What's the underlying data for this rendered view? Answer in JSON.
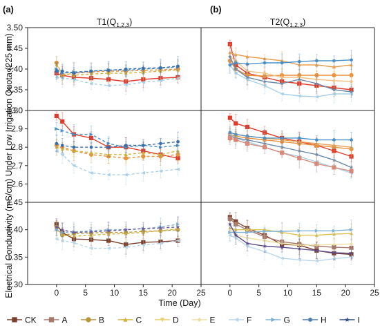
{
  "chart_data": {
    "type": "line",
    "panel_letters": [
      "(a)",
      "(b)"
    ],
    "column_titles": [
      "T1(Q",
      "T2(Q"
    ],
    "column_title_sub": "1,2,3",
    "column_title_close": ")",
    "xlabel": "Time (Day)",
    "ylabel": "Electrical Conductivity (mS/cm) Under Low Irrigation Quota (225 mm)",
    "xlim": [
      -5,
      25
    ],
    "xticks": [
      "0",
      "5",
      "10",
      "15",
      "20",
      "25"
    ],
    "x": [
      0,
      1,
      3,
      6,
      9,
      12,
      15,
      18,
      21
    ],
    "rows": [
      {
        "ylim": [
          3.3,
          3.5
        ],
        "yticks": [
          "3.30",
          "3.35",
          "3.40",
          "3.45",
          "3.50"
        ]
      },
      {
        "ylim": [
          2.5,
          3.0
        ],
        "yticks": [
          "2.6",
          "2.7",
          "2.8",
          "2.9",
          "3.0"
        ]
      },
      {
        "ylim": [
          1.3,
          1.45
        ],
        "yticks": [
          "1.30",
          "1.35",
          "1.40",
          "1.45"
        ]
      }
    ],
    "series_style": [
      {
        "name": "CK",
        "color": "#7a3e2c",
        "marker": "square"
      },
      {
        "name": "A",
        "color": "#a7786a",
        "marker": "square"
      },
      {
        "name": "B",
        "color": "#b8963b",
        "marker": "circle"
      },
      {
        "name": "C",
        "color": "#d4b23a",
        "marker": "triangle"
      },
      {
        "name": "D",
        "color": "#e8cf6f",
        "marker": "triangle-down"
      },
      {
        "name": "E",
        "color": "#ecdfa0",
        "marker": "diamond"
      },
      {
        "name": "F",
        "color": "#b9d6ea",
        "marker": "left"
      },
      {
        "name": "G",
        "color": "#7fb2d6",
        "marker": "right"
      },
      {
        "name": "H",
        "color": "#4f7fb0",
        "marker": "hexagon"
      },
      {
        "name": "I",
        "color": "#2f4f86",
        "marker": "star"
      }
    ],
    "panels": [
      {
        "row": 0,
        "col": 0,
        "series": [
          {
            "color": "#e03a2a",
            "marker": "square",
            "dash": false,
            "values": [
              3.39,
              3.385,
              3.38,
              3.378,
              3.375,
              3.37,
              3.375,
              3.378,
              3.38
            ]
          },
          {
            "color": "#e8903a",
            "marker": "circle",
            "dash": true,
            "values": [
              3.415,
              3.385,
              3.39,
              3.393,
              3.395,
              3.395,
              3.397,
              3.398,
              3.4
            ]
          },
          {
            "color": "#d4b23a",
            "marker": "triangle",
            "dash": true,
            "values": [
              3.41,
              3.39,
              3.385,
              3.388,
              3.39,
              3.39,
              3.392,
              3.395,
              3.398
            ]
          },
          {
            "color": "#a7d0e8",
            "marker": "left",
            "dash": true,
            "values": [
              3.38,
              3.378,
              3.375,
              3.365,
              3.36,
              3.362,
              3.368,
              3.372,
              3.378
            ]
          },
          {
            "color": "#4a90c8",
            "marker": "right",
            "dash": true,
            "values": [
              3.4,
              3.39,
              3.393,
              3.395,
              3.398,
              3.397,
              3.4,
              3.402,
              3.405
            ]
          },
          {
            "color": "#3a6fa8",
            "marker": "hexagon",
            "dash": true,
            "values": [
              3.395,
              3.395,
              3.39,
              3.395,
              3.397,
              3.4,
              3.402,
              3.403,
              3.407
            ]
          }
        ]
      },
      {
        "row": 0,
        "col": 1,
        "series": [
          {
            "color": "#e03a2a",
            "marker": "square",
            "dash": false,
            "values": [
              3.46,
              3.41,
              3.39,
              3.38,
              3.37,
              3.365,
              3.36,
              3.355,
              3.35
            ]
          },
          {
            "color": "#e8903a",
            "marker": "circle",
            "dash": false,
            "values": [
              3.42,
              3.4,
              3.385,
              3.383,
              3.385,
              3.385,
              3.385,
              3.385,
              3.385
            ]
          },
          {
            "color": "#e8a050",
            "marker": "triangle",
            "dash": false,
            "values": [
              3.44,
              3.435,
              3.43,
              3.425,
              3.42,
              3.41,
              3.41,
              3.405,
              3.41
            ]
          },
          {
            "color": "#f0c080",
            "marker": "diamond",
            "dash": false,
            "values": [
              3.43,
              3.42,
              3.395,
              3.39,
              3.38,
              3.38,
              3.375,
              3.372,
              3.37
            ]
          },
          {
            "color": "#a7d0e8",
            "marker": "left",
            "dash": false,
            "values": [
              3.41,
              3.39,
              3.375,
              3.36,
              3.34,
              3.335,
              3.333,
              3.34,
              3.34
            ]
          },
          {
            "color": "#4a90c8",
            "marker": "hexagon",
            "dash": false,
            "values": [
              3.41,
              3.415,
              3.412,
              3.415,
              3.415,
              3.418,
              3.42,
              3.42,
              3.422
            ]
          },
          {
            "color": "#6a8aa8",
            "marker": "star",
            "dash": false,
            "values": [
              3.43,
              3.4,
              3.38,
              3.37,
              3.365,
              3.375,
              3.365,
              3.35,
              3.345
            ]
          }
        ]
      },
      {
        "row": 1,
        "col": 0,
        "series": [
          {
            "color": "#e03a2a",
            "marker": "square",
            "dash": false,
            "values": [
              2.97,
              2.94,
              2.87,
              2.85,
              2.8,
              2.8,
              2.78,
              2.76,
              2.74
            ]
          },
          {
            "color": "#e8903a",
            "marker": "circle",
            "dash": true,
            "values": [
              2.81,
              2.8,
              2.78,
              2.76,
              2.75,
              2.74,
              2.75,
              2.75,
              2.76
            ]
          },
          {
            "color": "#d4b23a",
            "marker": "triangle",
            "dash": true,
            "values": [
              2.8,
              2.79,
              2.78,
              2.77,
              2.76,
              2.76,
              2.77,
              2.76,
              2.78
            ]
          },
          {
            "color": "#a7d0e8",
            "marker": "left",
            "dash": true,
            "values": [
              2.78,
              2.76,
              2.7,
              2.66,
              2.65,
              2.65,
              2.66,
              2.67,
              2.68
            ]
          },
          {
            "color": "#4a90c8",
            "marker": "right",
            "dash": true,
            "values": [
              2.9,
              2.89,
              2.87,
              2.87,
              2.82,
              2.8,
              2.81,
              2.8,
              2.81
            ]
          },
          {
            "color": "#3a6fa8",
            "marker": "hexagon",
            "dash": true,
            "values": [
              2.82,
              2.81,
              2.8,
              2.8,
              2.8,
              2.81,
              2.81,
              2.82,
              2.83
            ]
          }
        ]
      },
      {
        "row": 1,
        "col": 1,
        "series": [
          {
            "color": "#e03a2a",
            "marker": "square",
            "dash": false,
            "values": [
              2.96,
              2.93,
              2.91,
              2.88,
              2.85,
              2.83,
              2.81,
              2.78,
              2.75
            ]
          },
          {
            "color": "#e8903a",
            "marker": "circle",
            "dash": false,
            "values": [
              2.87,
              2.86,
              2.85,
              2.84,
              2.83,
              2.82,
              2.81,
              2.8,
              2.79
            ]
          },
          {
            "color": "#e8a050",
            "marker": "triangle",
            "dash": false,
            "values": [
              2.88,
              2.87,
              2.86,
              2.85,
              2.84,
              2.83,
              2.82,
              2.81,
              2.8
            ]
          },
          {
            "color": "#a7d0e8",
            "marker": "left",
            "dash": false,
            "values": [
              2.87,
              2.85,
              2.83,
              2.8,
              2.77,
              2.75,
              2.72,
              2.69,
              2.66
            ]
          },
          {
            "color": "#4a90c8",
            "marker": "hexagon",
            "dash": false,
            "values": [
              2.88,
              2.87,
              2.86,
              2.85,
              2.85,
              2.85,
              2.84,
              2.84,
              2.84
            ]
          },
          {
            "color": "#6a8aa8",
            "marker": "star",
            "dash": false,
            "values": [
              2.86,
              2.85,
              2.84,
              2.82,
              2.8,
              2.78,
              2.76,
              2.73,
              2.69
            ]
          },
          {
            "color": "#d88a7a",
            "marker": "square",
            "dash": false,
            "values": [
              2.85,
              2.84,
              2.82,
              2.8,
              2.77,
              2.74,
              2.71,
              2.69,
              2.67
            ]
          }
        ]
      },
      {
        "row": 2,
        "col": 0,
        "series": [
          {
            "color": "#7a3e2c",
            "marker": "square",
            "dash": false,
            "values": [
              1.41,
              1.395,
              1.383,
              1.382,
              1.38,
              1.373,
              1.377,
              1.378,
              1.38
            ]
          },
          {
            "color": "#b8963b",
            "marker": "circle",
            "dash": true,
            "values": [
              1.405,
              1.39,
              1.393,
              1.394,
              1.395,
              1.395,
              1.397,
              1.398,
              1.4
            ]
          },
          {
            "color": "#d4b23a",
            "marker": "triangle",
            "dash": true,
            "values": [
              1.4,
              1.39,
              1.388,
              1.39,
              1.392,
              1.393,
              1.395,
              1.398,
              1.402
            ]
          },
          {
            "color": "#b9d6ea",
            "marker": "left",
            "dash": true,
            "values": [
              1.383,
              1.38,
              1.376,
              1.366,
              1.366,
              1.368,
              1.372,
              1.375,
              1.38
            ]
          },
          {
            "color": "#7fb2d6",
            "marker": "right",
            "dash": true,
            "values": [
              1.4,
              1.395,
              1.396,
              1.398,
              1.4,
              1.4,
              1.402,
              1.405,
              1.41
            ]
          },
          {
            "color": "#6a5a9a",
            "marker": "star",
            "dash": true,
            "values": [
              1.405,
              1.4,
              1.395,
              1.396,
              1.398,
              1.4,
              1.402,
              1.403,
              1.405
            ]
          }
        ]
      },
      {
        "row": 2,
        "col": 1,
        "series": [
          {
            "color": "#7a3e2c",
            "marker": "square",
            "dash": false,
            "values": [
              1.423,
              1.415,
              1.403,
              1.39,
              1.373,
              1.372,
              1.362,
              1.357,
              1.355
            ]
          },
          {
            "color": "#a7786a",
            "marker": "square",
            "dash": false,
            "values": [
              1.42,
              1.41,
              1.4,
              1.387,
              1.378,
              1.374,
              1.37,
              1.368,
              1.367
            ]
          },
          {
            "color": "#e0c050",
            "marker": "triangle",
            "dash": false,
            "values": [
              1.403,
              1.4,
              1.4,
              1.4,
              1.395,
              1.39,
              1.39,
              1.392,
              1.393
            ]
          },
          {
            "color": "#ecdfa0",
            "marker": "diamond",
            "dash": false,
            "values": [
              1.4,
              1.39,
              1.385,
              1.38,
              1.375,
              1.372,
              1.372,
              1.373,
              1.374
            ]
          },
          {
            "color": "#b9d6ea",
            "marker": "left",
            "dash": false,
            "values": [
              1.39,
              1.385,
              1.37,
              1.36,
              1.348,
              1.345,
              1.343,
              1.347,
              1.35
            ]
          },
          {
            "color": "#7fb2d6",
            "marker": "right",
            "dash": false,
            "values": [
              1.395,
              1.395,
              1.395,
              1.397,
              1.397,
              1.398,
              1.398,
              1.398,
              1.4
            ]
          },
          {
            "color": "#5a4a8a",
            "marker": "star",
            "dash": false,
            "values": [
              1.41,
              1.39,
              1.375,
              1.37,
              1.368,
              1.365,
              1.362,
              1.358,
              1.357
            ]
          }
        ]
      }
    ]
  }
}
